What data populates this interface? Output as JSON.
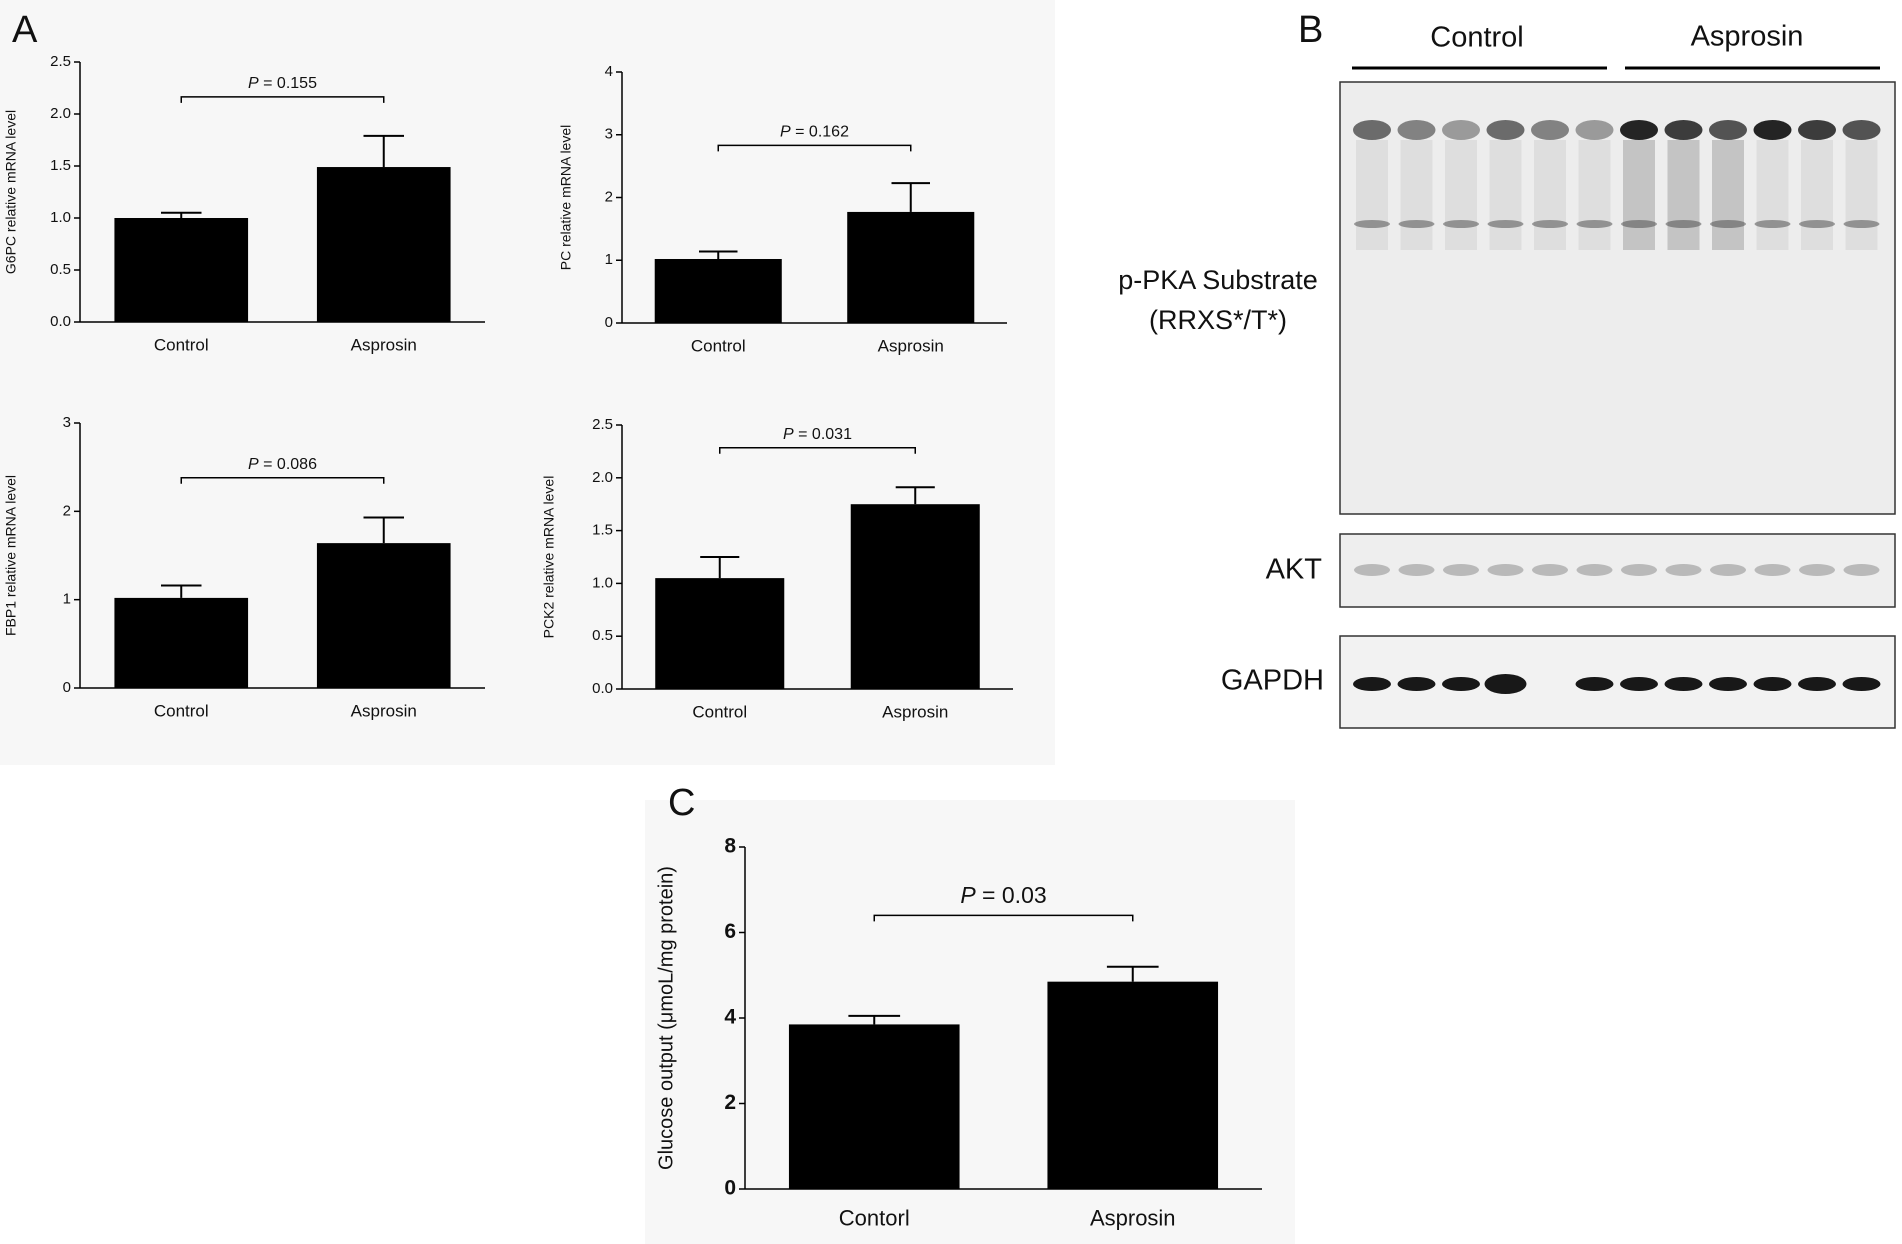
{
  "chart_data": [
    {
      "type": "bar",
      "ylabel": "G6PC relative mRNA level",
      "categories": [
        "Control",
        "Asprosin"
      ],
      "values": [
        1.0,
        1.49
      ],
      "errors": [
        0.05,
        0.3
      ],
      "ylim": [
        0,
        2.5
      ],
      "yticks": [
        {
          "value": 0,
          "label": "0.0"
        },
        0.5,
        {
          "value": 1,
          "label": "1.0"
        },
        1.5,
        {
          "value": 2,
          "label": "2.0"
        },
        2.5
      ],
      "color": "#000000",
      "annotation": "P = 0.155"
    },
    {
      "type": "bar",
      "ylabel": "PC relative mRNA level",
      "categories": [
        "Control",
        "Asprosin"
      ],
      "values": [
        1.02,
        1.77
      ],
      "errors": [
        0.12,
        0.46
      ],
      "ylim": [
        0,
        4
      ],
      "yticks": [
        0,
        1,
        2,
        3,
        4
      ],
      "color": "#000000",
      "annotation": "P = 0.162"
    },
    {
      "type": "bar",
      "ylabel": "FBP1 relative mRNA level",
      "categories": [
        "Control",
        "Asprosin"
      ],
      "values": [
        1.02,
        1.64
      ],
      "errors": [
        0.14,
        0.29
      ],
      "ylim": [
        0,
        3
      ],
      "yticks": [
        0,
        1,
        2,
        3
      ],
      "color": "#000000",
      "annotation": "P = 0.086"
    },
    {
      "type": "bar",
      "ylabel": "PCK2 relative mRNA level",
      "categories": [
        "Control",
        "Asprosin"
      ],
      "values": [
        1.05,
        1.75
      ],
      "errors": [
        0.2,
        0.16
      ],
      "ylim": [
        0,
        2.5
      ],
      "yticks": [
        {
          "value": 0,
          "label": "0.0"
        },
        0.5,
        {
          "value": 1,
          "label": "1.0"
        },
        1.5,
        {
          "value": 2,
          "label": "2.0"
        },
        2.5
      ],
      "color": "#000000",
      "annotation": "P = 0.031"
    },
    {
      "type": "bar",
      "ylabel": "Glucose output (μmoL/mg protein)",
      "categories": [
        "Contorl",
        "Asprosin"
      ],
      "values": [
        3.85,
        4.85
      ],
      "errors": [
        0.2,
        0.35
      ],
      "ylim": [
        0,
        8
      ],
      "yticks": [
        0,
        2,
        4,
        6,
        8
      ],
      "color": "#000000",
      "annotation": "P = 0.03"
    }
  ],
  "panel_labels": [
    "A",
    "B",
    "C"
  ],
  "blot": {
    "groups": [
      "Control",
      "Asprosin"
    ],
    "rows": [
      "p-PKA Substrate",
      "(RRXS*/T*)",
      "AKT",
      "GAPDH"
    ]
  }
}
